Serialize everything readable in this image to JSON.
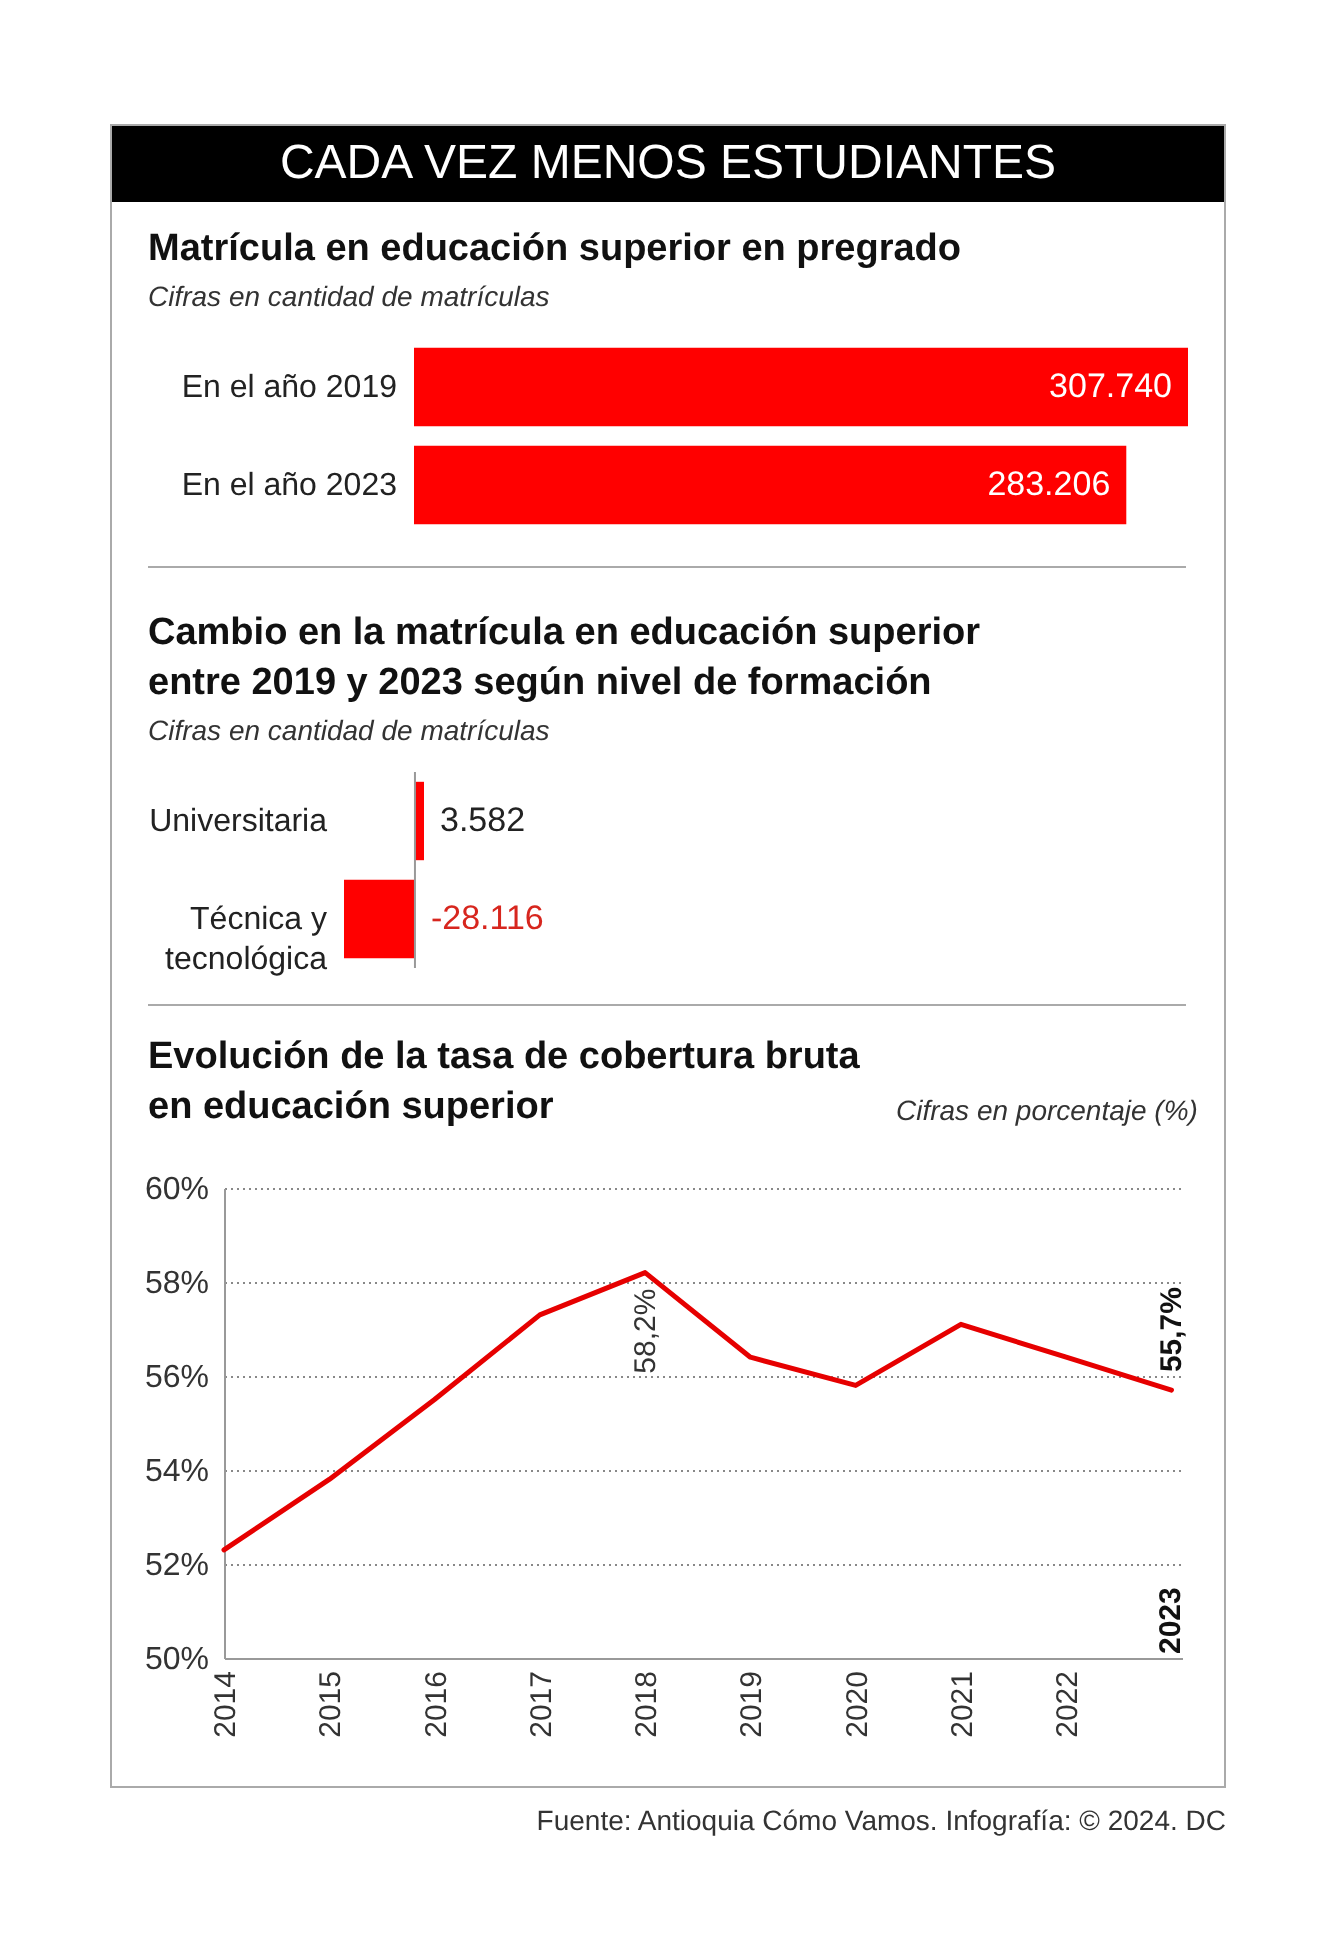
{
  "chart_data": [
    {
      "type": "other",
      "title": "CADA VEZ MENOS ESTUDIANTES"
    },
    {
      "type": "bar",
      "orientation": "horizontal",
      "title": "Matrícula en educación superior en pregrado",
      "subtitle": "Cifras en cantidad de matrículas",
      "categories": [
        "En el año 2019",
        "En el año 2023"
      ],
      "values": [
        307740,
        283206
      ],
      "value_labels": [
        "307.740",
        "283.206"
      ],
      "color": "#ff0000"
    },
    {
      "type": "bar",
      "orientation": "horizontal",
      "title": "Cambio en la matrícula en educación superior entre 2019 y 2023 según nivel de formación",
      "subtitle": "Cifras en cantidad de matrículas",
      "categories": [
        "Universitaria",
        "Técnica y tecnológica"
      ],
      "values": [
        3582,
        -28116
      ],
      "value_labels": [
        "3.582",
        "-28.116"
      ],
      "color": "#ff0000",
      "ref_lines": [
        {
          "axis": "x",
          "value": 0,
          "color": "#999999"
        }
      ]
    },
    {
      "type": "line",
      "title": "Evolución de la tasa de cobertura bruta en educación superior",
      "subtitle": "Cifras en porcentaje (%)",
      "x": [
        2014,
        2015,
        2016,
        2017,
        2018,
        2019,
        2020,
        2021,
        2022,
        2023
      ],
      "values": [
        52.3,
        53.8,
        55.5,
        57.3,
        58.2,
        56.4,
        55.8,
        57.1,
        56.4,
        55.7
      ],
      "value_labels": [
        null,
        null,
        null,
        null,
        "58,2%",
        null,
        null,
        null,
        null,
        "55,7%"
      ],
      "color": "#e60000",
      "xlim": [
        2014,
        2023.1
      ],
      "xticks": [
        2014,
        2015,
        2016,
        2017,
        2018,
        2019,
        2020,
        2021,
        2022
      ],
      "ylim": [
        50,
        60
      ],
      "yticks": [
        {
          "value": 50,
          "label": "50%"
        },
        {
          "value": 52,
          "label": "52%"
        },
        {
          "value": 54,
          "label": "54%"
        },
        {
          "value": 56,
          "label": "56%"
        },
        {
          "value": 58,
          "label": "58%"
        },
        {
          "value": 60,
          "label": "60%"
        }
      ],
      "grid": "y",
      "annotations": [
        "2023",
        "Fuente: Antioquia Cómo Vamos. Infografía: © 2024. DC"
      ]
    }
  ]
}
